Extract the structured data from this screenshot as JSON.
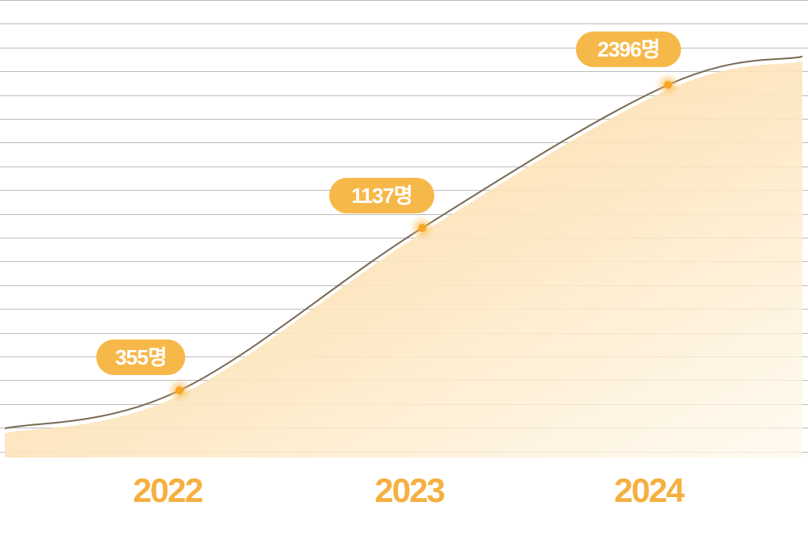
{
  "chart_data": {
    "type": "area",
    "categories": [
      "2022",
      "2023",
      "2024"
    ],
    "values": [
      355,
      1137,
      2396
    ],
    "data_labels": [
      "355명",
      "1137명",
      "2396명"
    ],
    "title": "",
    "xlabel": "",
    "ylabel": "",
    "grid": true,
    "legend": "none",
    "colors": {
      "accent": "#f5b041",
      "label_bg": "#f7b84a",
      "line": "#7a6a55",
      "fill": "#fde2b3",
      "grid": "#bdbdbd",
      "tick_text": "#f5b041"
    }
  }
}
